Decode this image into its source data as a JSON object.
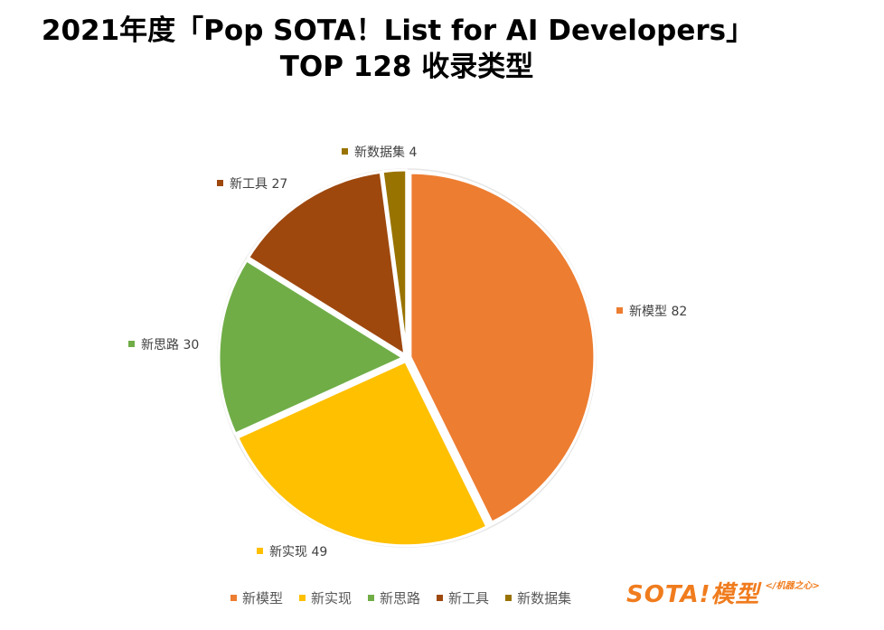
{
  "title": {
    "line1": "2021年度「Pop SOTA！List for AI Developers」",
    "line2": "TOP 128 收录类型"
  },
  "chart_data": {
    "type": "pie",
    "title": "2021年度「Pop SOTA！List for AI Developers」TOP 128 收录类型",
    "categories": [
      "新模型",
      "新实现",
      "新思路",
      "新工具",
      "新数据集"
    ],
    "values": [
      82,
      49,
      30,
      27,
      4
    ],
    "colors": [
      "#ED7D31",
      "#FFC000",
      "#70AD47",
      "#9E480E",
      "#997300"
    ],
    "data_labels": [
      "新模型 82",
      "新实现 49",
      "新思路 30",
      "新工具 27",
      "新数据集 4"
    ],
    "legend_position": "bottom"
  },
  "brand": {
    "main": "SOTA!模型",
    "sub": "</机器之心>"
  }
}
